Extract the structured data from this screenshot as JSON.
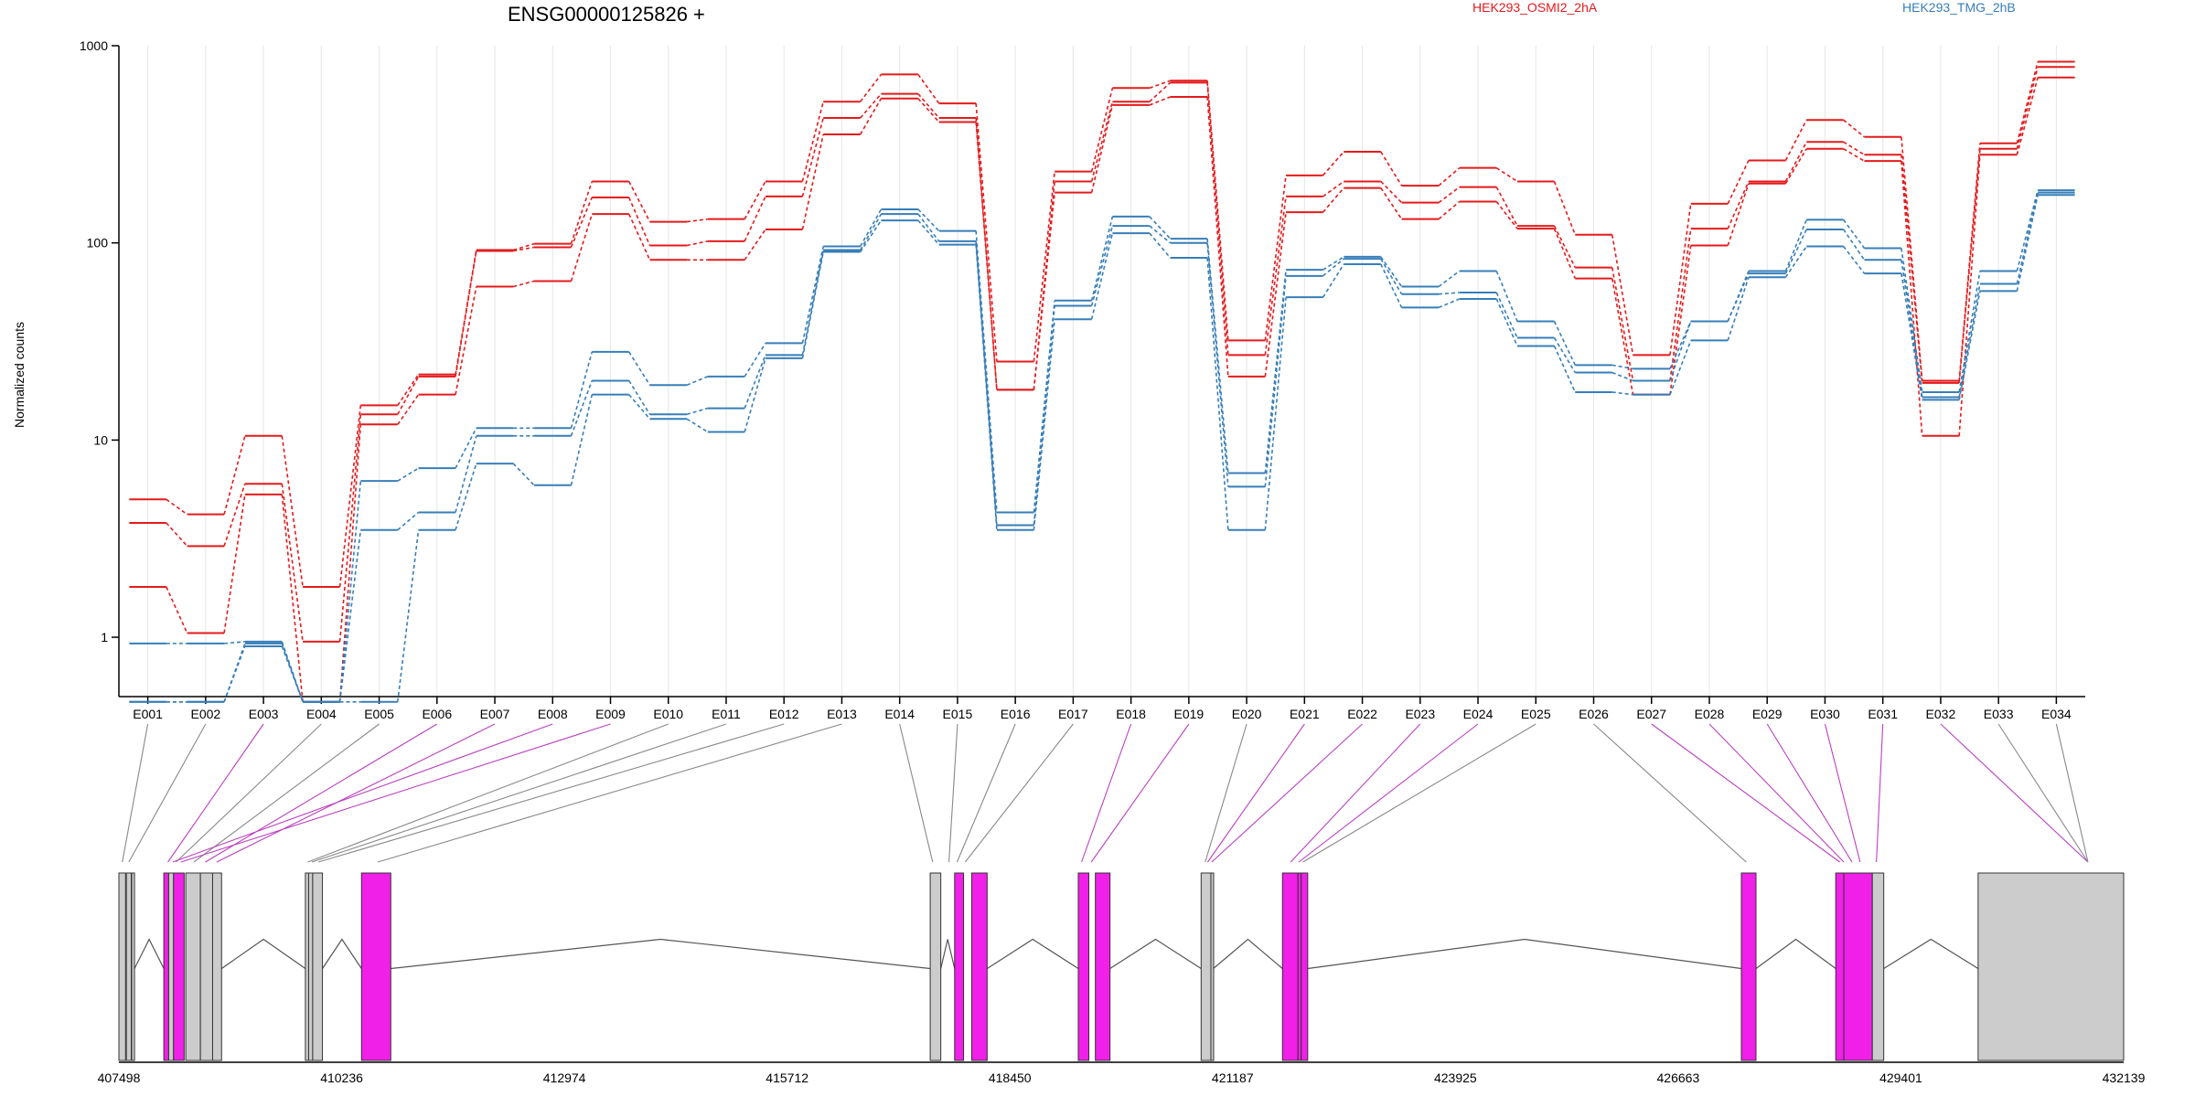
{
  "chart_data": {
    "type": "line",
    "title": "ENSG00000125826 +",
    "ylabel": "Normalized counts",
    "yscale": "log",
    "ylim": [
      0.5,
      1000
    ],
    "yticks": [
      "1",
      "10",
      "100",
      "1000"
    ],
    "categories": [
      "E001",
      "E002",
      "E003",
      "E004",
      "E005",
      "E006",
      "E007",
      "E008",
      "E009",
      "E010",
      "E011",
      "E012",
      "E013",
      "E014",
      "E015",
      "E016",
      "E017",
      "E018",
      "E019",
      "E020",
      "E021",
      "E022",
      "E023",
      "E024",
      "E025",
      "E026",
      "E027",
      "E028",
      "E029",
      "E030",
      "E031",
      "E032",
      "E033",
      "E034"
    ],
    "legend": [
      {
        "name": "HEK293_OSMI2_2hA",
        "color": "#e41a1c"
      },
      {
        "name": "HEK293_TMG_2hB",
        "color": "#377eb8"
      }
    ],
    "series": [
      {
        "group": "HEK293_OSMI2_2hA",
        "color": "#e41a1c",
        "values": [
          5.0,
          4.2,
          10.5,
          1.8,
          15,
          21.5,
          92,
          99,
          205,
          128,
          132,
          205,
          520,
          715,
          510,
          25,
          230,
          610,
          665,
          32,
          220,
          290,
          195,
          240,
          205,
          110,
          27,
          158,
          262,
          420,
          345,
          20,
          320,
          830
        ]
      },
      {
        "group": "HEK293_OSMI2_2hA",
        "color": "#e41a1c",
        "values": [
          3.8,
          2.9,
          6.0,
          0.95,
          13.5,
          21,
          91,
          95,
          170,
          97,
          102,
          172,
          430,
          570,
          430,
          18,
          205,
          520,
          650,
          27,
          172,
          205,
          160,
          192,
          122,
          75,
          20,
          118,
          205,
          325,
          280,
          19.5,
          300,
          780
        ]
      },
      {
        "group": "HEK293_OSMI2_2hA",
        "color": "#e41a1c",
        "values": [
          1.8,
          1.05,
          5.3,
          0.47,
          12,
          17,
          60,
          64,
          140,
          82,
          82,
          117,
          355,
          540,
          410,
          18,
          180,
          500,
          550,
          21,
          143,
          190,
          132,
          162,
          118,
          66,
          17,
          97,
          200,
          300,
          260,
          10.5,
          280,
          690
        ]
      },
      {
        "group": "HEK293_TMG_2hB",
        "color": "#377eb8",
        "values": [
          0.93,
          0.93,
          0.95,
          0.47,
          6.2,
          7.2,
          11.5,
          11.5,
          28,
          19,
          21,
          31,
          96,
          148,
          115,
          4.3,
          51,
          136,
          105,
          6.8,
          73,
          85,
          60,
          72,
          40,
          24,
          23,
          40,
          72,
          131,
          94,
          17.5,
          72,
          185
        ]
      },
      {
        "group": "HEK293_TMG_2hB",
        "color": "#377eb8",
        "values": [
          0.47,
          0.47,
          0.93,
          0.47,
          3.5,
          4.3,
          10.5,
          10.5,
          20,
          13.5,
          14.5,
          27,
          92,
          140,
          102,
          3.7,
          48,
          122,
          100,
          5.8,
          68,
          83,
          55,
          56,
          33,
          22,
          20,
          40,
          70,
          117,
          82,
          16.5,
          62,
          180
        ]
      },
      {
        "group": "HEK293_TMG_2hB",
        "color": "#377eb8",
        "values": [
          0.47,
          0.47,
          0.9,
          0.47,
          0.47,
          3.5,
          7.6,
          5.9,
          17,
          12.8,
          11,
          26,
          90,
          130,
          98,
          3.5,
          41,
          112,
          84,
          3.5,
          53,
          78,
          47,
          52,
          30,
          17.5,
          17,
          32,
          67,
          96,
          70,
          16,
          57,
          175
        ]
      }
    ],
    "exon_pairs": [
      {
        "exon": "E001",
        "significant": false
      },
      {
        "exon": "E002",
        "significant": false
      },
      {
        "exon": "E003",
        "significant": true
      },
      {
        "exon": "E004",
        "significant": false
      },
      {
        "exon": "E005",
        "significant": false
      },
      {
        "exon": "E006",
        "significant": true
      },
      {
        "exon": "E007",
        "significant": true
      },
      {
        "exon": "E008",
        "significant": true
      },
      {
        "exon": "E009",
        "significant": true
      },
      {
        "exon": "E010",
        "significant": false
      },
      {
        "exon": "E011",
        "significant": false
      },
      {
        "exon": "E012",
        "significant": false
      },
      {
        "exon": "E013",
        "significant": false
      },
      {
        "exon": "E014",
        "significant": false
      },
      {
        "exon": "E015",
        "significant": false
      },
      {
        "exon": "E016",
        "significant": false
      },
      {
        "exon": "E017",
        "significant": false
      },
      {
        "exon": "E018",
        "significant": true
      },
      {
        "exon": "E019",
        "significant": true
      },
      {
        "exon": "E020",
        "significant": false
      },
      {
        "exon": "E021",
        "significant": true
      },
      {
        "exon": "E022",
        "significant": true
      },
      {
        "exon": "E023",
        "significant": true
      },
      {
        "exon": "E024",
        "significant": true
      },
      {
        "exon": "E025",
        "significant": false
      },
      {
        "exon": "E026",
        "significant": false
      },
      {
        "exon": "E027",
        "significant": true
      },
      {
        "exon": "E028",
        "significant": true
      },
      {
        "exon": "E029",
        "significant": true
      },
      {
        "exon": "E030",
        "significant": true
      },
      {
        "exon": "E031",
        "significant": true
      },
      {
        "exon": "E032",
        "significant": true
      },
      {
        "exon": "E033",
        "significant": false
      },
      {
        "exon": "E034",
        "significant": false
      }
    ],
    "genomic_axis": {
      "range": [
        407498,
        432139
      ],
      "tick_labels": [
        "407498",
        "410236",
        "412974",
        "415712",
        "418450",
        "421187",
        "423925",
        "426663",
        "429401",
        "432139"
      ]
    },
    "gene_model": {
      "exons": [
        {
          "start": 407498,
          "end": 407580,
          "significant": false
        },
        {
          "start": 407590,
          "end": 407650,
          "significant": false
        },
        {
          "start": 407655,
          "end": 407690,
          "significant": false
        },
        {
          "start": 408050,
          "end": 408110,
          "significant": true
        },
        {
          "start": 408110,
          "end": 408170,
          "significant": false
        },
        {
          "start": 408170,
          "end": 408300,
          "significant": true
        },
        {
          "start": 408320,
          "end": 408500,
          "significant": false
        },
        {
          "start": 408500,
          "end": 408650,
          "significant": false
        },
        {
          "start": 408650,
          "end": 408760,
          "significant": false
        },
        {
          "start": 409790,
          "end": 409830,
          "significant": false
        },
        {
          "start": 409830,
          "end": 409880,
          "significant": false
        },
        {
          "start": 409880,
          "end": 410000,
          "significant": false
        },
        {
          "start": 410480,
          "end": 410840,
          "significant": true
        },
        {
          "start": 417470,
          "end": 417600,
          "significant": false
        },
        {
          "start": 417770,
          "end": 417880,
          "significant": true
        },
        {
          "start": 417980,
          "end": 418170,
          "significant": true
        },
        {
          "start": 419290,
          "end": 419420,
          "significant": true
        },
        {
          "start": 419500,
          "end": 419680,
          "significant": true
        },
        {
          "start": 420800,
          "end": 420920,
          "significant": false
        },
        {
          "start": 420920,
          "end": 420950,
          "significant": false
        },
        {
          "start": 421800,
          "end": 421990,
          "significant": true
        },
        {
          "start": 421990,
          "end": 422030,
          "significant": true
        },
        {
          "start": 422030,
          "end": 422110,
          "significant": true
        },
        {
          "start": 427440,
          "end": 427620,
          "significant": true
        },
        {
          "start": 428600,
          "end": 428700,
          "significant": true
        },
        {
          "start": 428700,
          "end": 429050,
          "significant": true
        },
        {
          "start": 429050,
          "end": 429190,
          "significant": false
        },
        {
          "start": 430350,
          "end": 432139,
          "significant": false
        }
      ]
    }
  }
}
